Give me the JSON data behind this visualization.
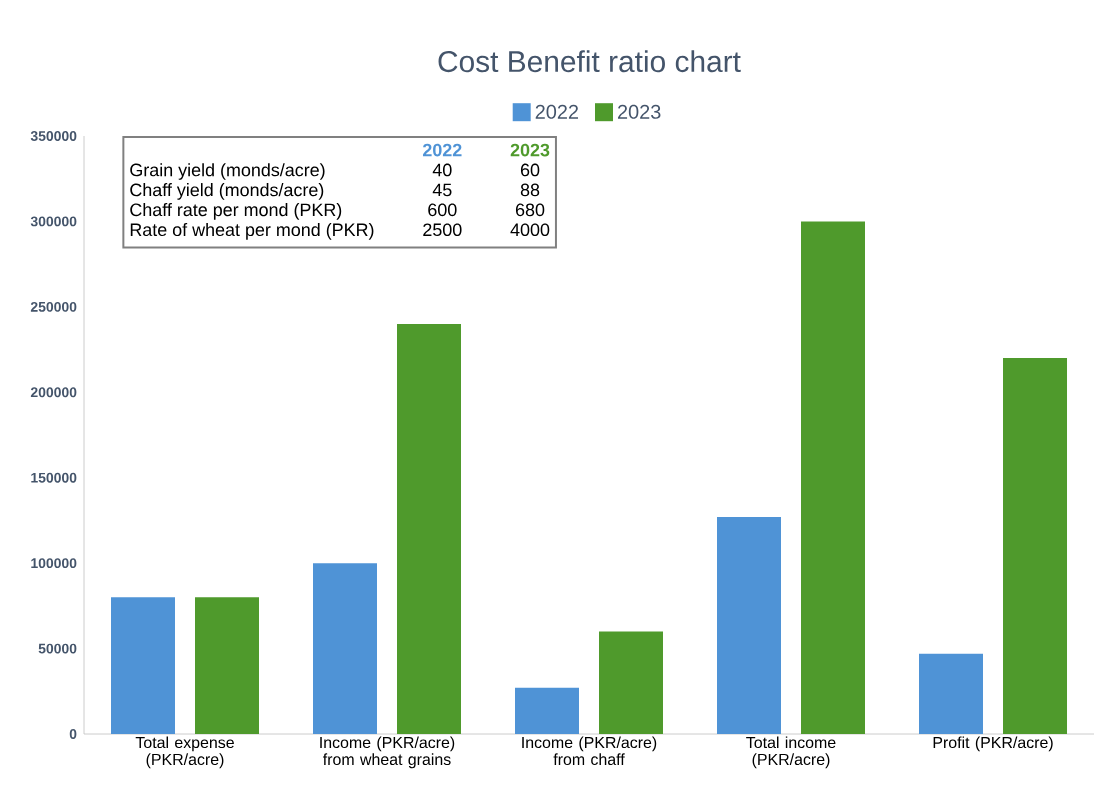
{
  "chart_data": {
    "type": "bar",
    "title": "Cost Benefit ratio chart",
    "categories": [
      "Total expense (PKR/acre)",
      "Income (PKR/acre) from wheat grains",
      "Income (PKR/acre) from chaff",
      "Total income (PKR/acre)",
      "Profit (PKR/acre)"
    ],
    "series": [
      {
        "name": "2022",
        "color": "#4f93d6",
        "values": [
          80000,
          100000,
          27000,
          127000,
          47000
        ]
      },
      {
        "name": "2023",
        "color": "#4f9a2c",
        "values": [
          80000,
          240000,
          60000,
          300000,
          220000
        ]
      }
    ],
    "ylim": [
      0,
      350000
    ],
    "yticks": [
      0,
      50000,
      100000,
      150000,
      200000,
      250000,
      300000,
      350000
    ],
    "grid": false,
    "legend": "top",
    "annotations": [
      "2022",
      "2023",
      "Grain yield (monds/acre)",
      "40",
      "60",
      "Chaff yield (monds/acre)",
      "45",
      "88",
      "Chaff rate per mond (PKR)",
      "600",
      "680",
      "Rate of wheat per mond (PKR)",
      "2500",
      "4000"
    ]
  }
}
